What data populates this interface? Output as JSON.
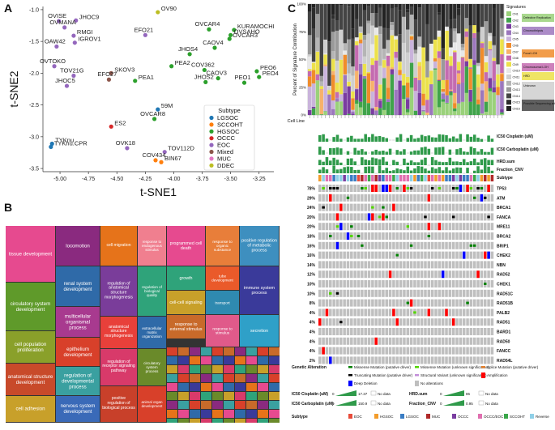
{
  "panel_letters": {
    "a": "A",
    "b": "B",
    "c": "C"
  },
  "chart_data": [
    {
      "type": "scatter",
      "id": "tsne",
      "xlabel": "t-SNE1",
      "ylabel": "t-SNE2",
      "xlim": [
        -5.15,
        -3.12
      ],
      "ylim": [
        -3.55,
        -0.95
      ],
      "xticks": [
        -5.0,
        -4.75,
        -4.5,
        -4.25,
        -4.0,
        -3.75,
        -3.5,
        -3.25
      ],
      "xtick_labels": [
        "-5.00",
        "-4.75",
        "-4.50",
        "-4.25",
        "-4.00",
        "-3.75",
        "-3.50",
        "-3.25"
      ],
      "yticks": [
        -1.0,
        -1.5,
        -2.0,
        -2.5,
        -3.0,
        -3.5
      ],
      "ytick_labels": [
        "-1.0",
        "-1.5",
        "-2.0",
        "-2.5",
        "-3.0",
        "-3.5"
      ],
      "legend_title": "Subtype",
      "legend": [
        {
          "name": "LGSOC",
          "color": "#1f77b4"
        },
        {
          "name": "SCCOHT",
          "color": "#ff7f0e"
        },
        {
          "name": "HGSOC",
          "color": "#2ca02c"
        },
        {
          "name": "OCCC",
          "color": "#d62728"
        },
        {
          "name": "EOC",
          "color": "#9467bd"
        },
        {
          "name": "Mixed",
          "color": "#8c564b"
        },
        {
          "name": "MUC",
          "color": "#e377c2"
        },
        {
          "name": "DDEC",
          "color": "#bcbd22"
        }
      ],
      "points": [
        {
          "label": "OVISE",
          "x": -5.01,
          "y": -1.18,
          "subtype": "EOC"
        },
        {
          "label": "JHOC9",
          "x": -4.86,
          "y": -1.17,
          "subtype": "EOC"
        },
        {
          "label": "OVMANA",
          "x": -4.96,
          "y": -1.28,
          "subtype": "EOC"
        },
        {
          "label": "RMGI",
          "x": -4.88,
          "y": -1.41,
          "subtype": "EOC"
        },
        {
          "label": "OAW42",
          "x": -5.03,
          "y": -1.58,
          "subtype": "EOC"
        },
        {
          "label": "IGROV1",
          "x": -4.87,
          "y": -1.52,
          "subtype": "EOC"
        },
        {
          "label": "OVTOKO",
          "x": -5.05,
          "y": -1.89,
          "subtype": "EOC"
        },
        {
          "label": "TOV21G",
          "x": -4.88,
          "y": -2.04,
          "subtype": "EOC"
        },
        {
          "label": "JHOC5",
          "x": -4.94,
          "y": -2.2,
          "subtype": "EOC"
        },
        {
          "label": "SKOV3",
          "x": -4.55,
          "y": -2.0,
          "subtype": "Mixed"
        },
        {
          "label": "EFO27",
          "x": -4.57,
          "y": -2.1,
          "subtype": "Mixed"
        },
        {
          "label": "EFO21",
          "x": -4.25,
          "y": -1.4,
          "subtype": "EOC"
        },
        {
          "label": "OV90",
          "x": -4.14,
          "y": -1.04,
          "subtype": "DDEC"
        },
        {
          "label": "PEA2",
          "x": -4.02,
          "y": -1.89,
          "subtype": "HGSOC"
        },
        {
          "label": "PEA1",
          "x": -4.34,
          "y": -2.12,
          "subtype": "HGSOC"
        },
        {
          "label": "OVCAR4",
          "x": -3.69,
          "y": -1.31,
          "subtype": "HGSOC"
        },
        {
          "label": "KURAMOCHI",
          "x": -3.47,
          "y": -1.32,
          "subtype": "HGSOC"
        },
        {
          "label": "OVSAHO",
          "x": -3.5,
          "y": -1.4,
          "subtype": "HGSOC"
        },
        {
          "label": "OVCAR3",
          "x": -3.51,
          "y": -1.46,
          "subtype": "HGSOC"
        },
        {
          "label": "CAOV4",
          "x": -3.64,
          "y": -1.6,
          "subtype": "HGSOC"
        },
        {
          "label": "JHOS4",
          "x": -3.86,
          "y": -1.7,
          "subtype": "HGSOC"
        },
        {
          "label": "COV362",
          "x": -3.73,
          "y": -1.95,
          "subtype": "HGSOC"
        },
        {
          "label": "CAOV3",
          "x": -3.61,
          "y": -2.08,
          "subtype": "HGSOC"
        },
        {
          "label": "JHOS2",
          "x": -3.72,
          "y": -2.14,
          "subtype": "HGSOC"
        },
        {
          "label": "PEO6",
          "x": -3.27,
          "y": -1.97,
          "subtype": "HGSOC"
        },
        {
          "label": "PEO4",
          "x": -3.25,
          "y": -2.06,
          "subtype": "HGSOC"
        },
        {
          "label": "PEO1",
          "x": -3.38,
          "y": -2.15,
          "subtype": "HGSOC"
        },
        {
          "label": "59M",
          "x": -4.14,
          "y": -2.57,
          "subtype": "LGSOC"
        },
        {
          "label": "OVCAR8",
          "x": -4.17,
          "y": -2.72,
          "subtype": "HGSOC"
        },
        {
          "label": "ES2",
          "x": -4.55,
          "y": -2.84,
          "subtype": "OCCC"
        },
        {
          "label": "TYKnu",
          "x": -5.07,
          "y": -3.11,
          "subtype": "LGSOC"
        },
        {
          "label": "TYKnu.CPR",
          "x": -5.08,
          "y": -3.16,
          "subtype": "LGSOC"
        },
        {
          "label": "OVK18",
          "x": -4.41,
          "y": -3.18,
          "subtype": "EOC"
        },
        {
          "label": "TOV112D",
          "x": -4.08,
          "y": -3.24,
          "subtype": "EOC"
        },
        {
          "label": "COV434",
          "x": -4.16,
          "y": -3.37,
          "subtype": "SCCOHT"
        },
        {
          "label": "BIN67",
          "x": -4.11,
          "y": -3.4,
          "subtype": "SCCOHT"
        }
      ]
    },
    {
      "type": "bar",
      "id": "signatures",
      "stacked": true,
      "ylabel": "Percent of Signature Contribution",
      "ylim": [
        0,
        100
      ],
      "yticks": [
        "0%",
        "25%",
        "50%",
        "75%",
        "100%"
      ],
      "xlabel": "Cell Line",
      "legend_title": "Signatures",
      "legend_groups": [
        {
          "name": "Defective Replication",
          "color": "#9ad17a"
        },
        {
          "name": "Chromothripsis",
          "color": "#9c77bd"
        },
        {
          "name": "Focal LOH",
          "color": "#f08c2a"
        },
        {
          "name": "Chromosomal LOH",
          "color": "#c46bb0"
        },
        {
          "name": "HRD",
          "color": "#ece14a"
        },
        {
          "name": "Unknown",
          "color": "#cfcfcf"
        },
        {
          "name": "Possible Sequencing artifact",
          "color": "#444444"
        }
      ],
      "signature_names": [
        "CN1",
        "CN2",
        "CN3",
        "CN4",
        "CN5",
        "CN6",
        "CN7",
        "CN8",
        "CN9",
        "CN10",
        "CN11",
        "CN12",
        "CN13",
        "CN14",
        "CN15",
        "CN16"
      ]
    },
    {
      "type": "heatmap",
      "id": "oncoprint",
      "tracks": [
        "IC50 Cisplatin (uM)",
        "IC50 Carboplatin (uM)",
        "HRD.sum",
        "Fraction_CNV",
        "Subtype"
      ],
      "genes": [
        {
          "gene": "TP53",
          "pct": "78%"
        },
        {
          "gene": "ATM",
          "pct": "29%"
        },
        {
          "gene": "BRCA1",
          "pct": "24%"
        },
        {
          "gene": "FANCA",
          "pct": "20%"
        },
        {
          "gene": "MRE11",
          "pct": "20%"
        },
        {
          "gene": "BRCA2",
          "pct": "18%"
        },
        {
          "gene": "BRIP1",
          "pct": "16%"
        },
        {
          "gene": "CHEK2",
          "pct": "16%"
        },
        {
          "gene": "NBN",
          "pct": "14%"
        },
        {
          "gene": "RAD52",
          "pct": "12%"
        },
        {
          "gene": "CHEK1",
          "pct": "10%"
        },
        {
          "gene": "RAD51C",
          "pct": "10%"
        },
        {
          "gene": "RAD51B",
          "pct": "8%"
        },
        {
          "gene": "PALB2",
          "pct": "4%"
        },
        {
          "gene": "RAD51",
          "pct": "4%"
        },
        {
          "gene": "BARD1",
          "pct": "4%"
        },
        {
          "gene": "RAD50",
          "pct": "4%"
        },
        {
          "gene": "FANCC",
          "pct": "4%"
        },
        {
          "gene": "RAD54L",
          "pct": "2%"
        }
      ],
      "legend": {
        "genetic_alteration_title": "Genetic Alteration",
        "alterations": [
          {
            "name": "Missense Mutation (putative driver)",
            "color": "#008000"
          },
          {
            "name": "Missense Mutation (unknown significance)",
            "color": "#53d400"
          },
          {
            "name": "Splice Mutation (putative driver)",
            "color": "#e5802b"
          },
          {
            "name": "Truncating Mutation (putative driver)",
            "color": "#000000"
          },
          {
            "name": "Structural Variant (unknown significance)",
            "color": "#c38eda"
          },
          {
            "name": "Amplification",
            "color": "#ff0000"
          },
          {
            "name": "Deep Deletion",
            "color": "#0000ff"
          },
          {
            "name": "No alterations",
            "color": "#bfbfbf"
          }
        ],
        "ic50_cis_title": "IC50 Cisplatin (uM)",
        "ic50_cis_range": [
          "0",
          "17.37"
        ],
        "ic50_carbo_title": "IC50 Carboplatin (uM)",
        "ic50_carbo_range": [
          "0",
          "150.9"
        ],
        "hrd_title": "HRD.sum",
        "hrd_range": [
          "0",
          "86"
        ],
        "fcnv_title": "Fraction_CNV",
        "fcnv_range": [
          "0",
          "0.95"
        ],
        "no_data": "No data",
        "subtype_title": "Subtype",
        "subtypes": [
          {
            "name": "EOC",
            "color": "#e84b3a"
          },
          {
            "name": "HGSOC",
            "color": "#f39c2b"
          },
          {
            "name": "LGSOC",
            "color": "#3a7dc4"
          },
          {
            "name": "MUC",
            "color": "#b02a2a"
          },
          {
            "name": "OCCC",
            "color": "#7a3da0"
          },
          {
            "name": "OCCC/EOC",
            "color": "#e06fb0"
          },
          {
            "name": "SCCOHT",
            "color": "#3aa64a"
          },
          {
            "name": "Reverse",
            "color": "#8fd0e8"
          }
        ]
      }
    },
    {
      "type": "treemap",
      "id": "go-treemap",
      "tiles": [
        {
          "label": "tissue development",
          "color": "#e64a8f"
        },
        {
          "label": "locomotion",
          "color": "#8a2a7f"
        },
        {
          "label": "cell migration",
          "color": "#e6731a"
        },
        {
          "label": "response to endogenous stimulus",
          "color": "#f07f8f"
        },
        {
          "label": "programmed cell death",
          "color": "#e64a8f"
        },
        {
          "label": "response to organic substance",
          "color": "#e87e3a"
        },
        {
          "label": "positive regulation of metabolic process",
          "color": "#3e8fbf"
        },
        {
          "label": "regulation of anatomical structure morphogenesis",
          "color": "#7a3d9a"
        },
        {
          "label": "regulation of biological quality",
          "color": "#2fa37a"
        },
        {
          "label": "growth",
          "color": "#2fa37a"
        },
        {
          "label": "tube development",
          "color": "#ea5a2a"
        },
        {
          "label": "circulatory system development",
          "color": "#5f9a2a"
        },
        {
          "label": "renal system development",
          "color": "#2f6aa8"
        },
        {
          "label": "multicellular organismal process",
          "color": "#a83a8f"
        },
        {
          "label": "extracellular matrix organization",
          "color": "#2f6aa8"
        },
        {
          "label": "cell-cell signaling",
          "color": "#c8a02a"
        },
        {
          "label": "response to external stimulus",
          "color": "#c86a2a"
        },
        {
          "label": "transport",
          "color": "#2f8ab0"
        },
        {
          "label": "immune system process",
          "color": "#3a3a9a"
        },
        {
          "label": "cell population proliferation",
          "color": "#8aa02a"
        },
        {
          "label": "anatomical structure development",
          "color": "#c84a2a"
        },
        {
          "label": "anatomical structure morphogenesis",
          "color": "#e8403a"
        },
        {
          "label": "epithelium development",
          "color": "#d8402a"
        },
        {
          "label": "regulation of developmental process",
          "color": "#3aa0a0"
        },
        {
          "label": "regulation of receptor signaling pathway",
          "color": "#d83a6a"
        },
        {
          "label": "positive regulation of biological process",
          "color": "#c8402a"
        },
        {
          "label": "circulatory system process",
          "color": "#6a8a2a"
        },
        {
          "label": "cell adhesion",
          "color": "#c8a02a"
        },
        {
          "label": "nervous system development",
          "color": "#3a6ab8"
        },
        {
          "label": "animal organ development",
          "color": "#d8402a"
        },
        {
          "label": "response to stimulus",
          "color": "#e05a8a"
        },
        {
          "label": "secretion",
          "color": "#2fa0c8"
        }
      ]
    }
  ]
}
